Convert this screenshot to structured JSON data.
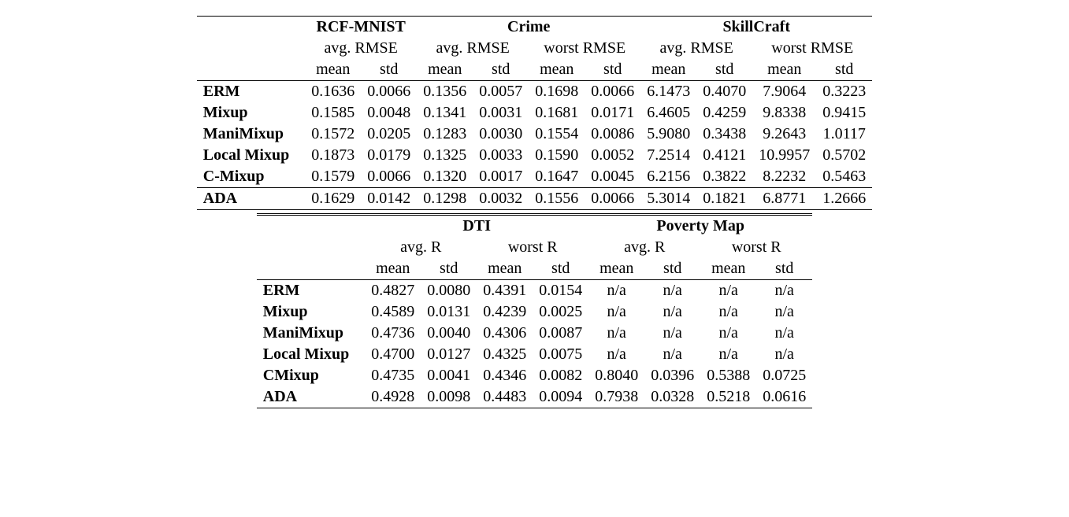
{
  "table1": {
    "datasets": [
      "RCF-MNIST",
      "Crime",
      "SkillCraft"
    ],
    "metric_groups": [
      {
        "dataset": 0,
        "metrics": [
          "avg. RMSE"
        ]
      },
      {
        "dataset": 1,
        "metrics": [
          "avg. RMSE",
          "worst RMSE"
        ]
      },
      {
        "dataset": 2,
        "metrics": [
          "avg. RMSE",
          "worst RMSE"
        ]
      }
    ],
    "sub": [
      "mean",
      "std"
    ],
    "rows": [
      {
        "label": "ERM",
        "vals": [
          "0.1636",
          "0.0066",
          "0.1356",
          "0.0057",
          "0.1698",
          "0.0066",
          "6.1473",
          "0.4070",
          "7.9064",
          "0.3223"
        ]
      },
      {
        "label": "Mixup",
        "vals": [
          "0.1585",
          "0.0048",
          "0.1341",
          "0.0031",
          "0.1681",
          "0.0171",
          "6.4605",
          "0.4259",
          "9.8338",
          "0.9415"
        ]
      },
      {
        "label": "ManiMixup",
        "vals": [
          "0.1572",
          "0.0205",
          "0.1283",
          "0.0030",
          "0.1554",
          "0.0086",
          "5.9080",
          "0.3438",
          "9.2643",
          "1.0117"
        ]
      },
      {
        "label": "Local Mixup",
        "vals": [
          "0.1873",
          "0.0179",
          "0.1325",
          "0.0033",
          "0.1590",
          "0.0052",
          "7.2514",
          "0.4121",
          "10.9957",
          "0.5702"
        ]
      },
      {
        "label": "C-Mixup",
        "vals": [
          "0.1579",
          "0.0066",
          "0.1320",
          "0.0017",
          "0.1647",
          "0.0045",
          "6.2156",
          "0.3822",
          "8.2232",
          "0.5463"
        ]
      }
    ],
    "ada": {
      "label": "ADA",
      "vals": [
        "0.1629",
        "0.0142",
        "0.1298",
        "0.0032",
        "0.1556",
        "0.0066",
        "5.3014",
        "0.1821",
        "6.8771",
        "1.2666"
      ]
    }
  },
  "table2": {
    "datasets": [
      "DTI",
      "Poverty Map"
    ],
    "metric_groups": [
      {
        "dataset": 0,
        "metrics": [
          "avg. R",
          "worst R"
        ]
      },
      {
        "dataset": 1,
        "metrics": [
          "avg. R",
          "worst R"
        ]
      }
    ],
    "sub": [
      "mean",
      "std"
    ],
    "rows": [
      {
        "label": "ERM",
        "vals": [
          "0.4827",
          "0.0080",
          "0.4391",
          "0.0154",
          "n/a",
          "n/a",
          "n/a",
          "n/a"
        ]
      },
      {
        "label": "Mixup",
        "vals": [
          "0.4589",
          "0.0131",
          "0.4239",
          "0.0025",
          "n/a",
          "n/a",
          "n/a",
          "n/a"
        ]
      },
      {
        "label": "ManiMixup",
        "vals": [
          "0.4736",
          "0.0040",
          "0.4306",
          "0.0087",
          "n/a",
          "n/a",
          "n/a",
          "n/a"
        ]
      },
      {
        "label": "Local Mixup",
        "vals": [
          "0.4700",
          "0.0127",
          "0.4325",
          "0.0075",
          "n/a",
          "n/a",
          "n/a",
          "n/a"
        ]
      },
      {
        "label": "CMixup",
        "vals": [
          "0.4735",
          "0.0041",
          "0.4346",
          "0.0082",
          "0.8040",
          "0.0396",
          "0.5388",
          "0.0725"
        ]
      },
      {
        "label": "ADA",
        "vals": [
          "0.4928",
          "0.0098",
          "0.4483",
          "0.0094",
          "0.7938",
          "0.0328",
          "0.5218",
          "0.0616"
        ]
      }
    ]
  }
}
